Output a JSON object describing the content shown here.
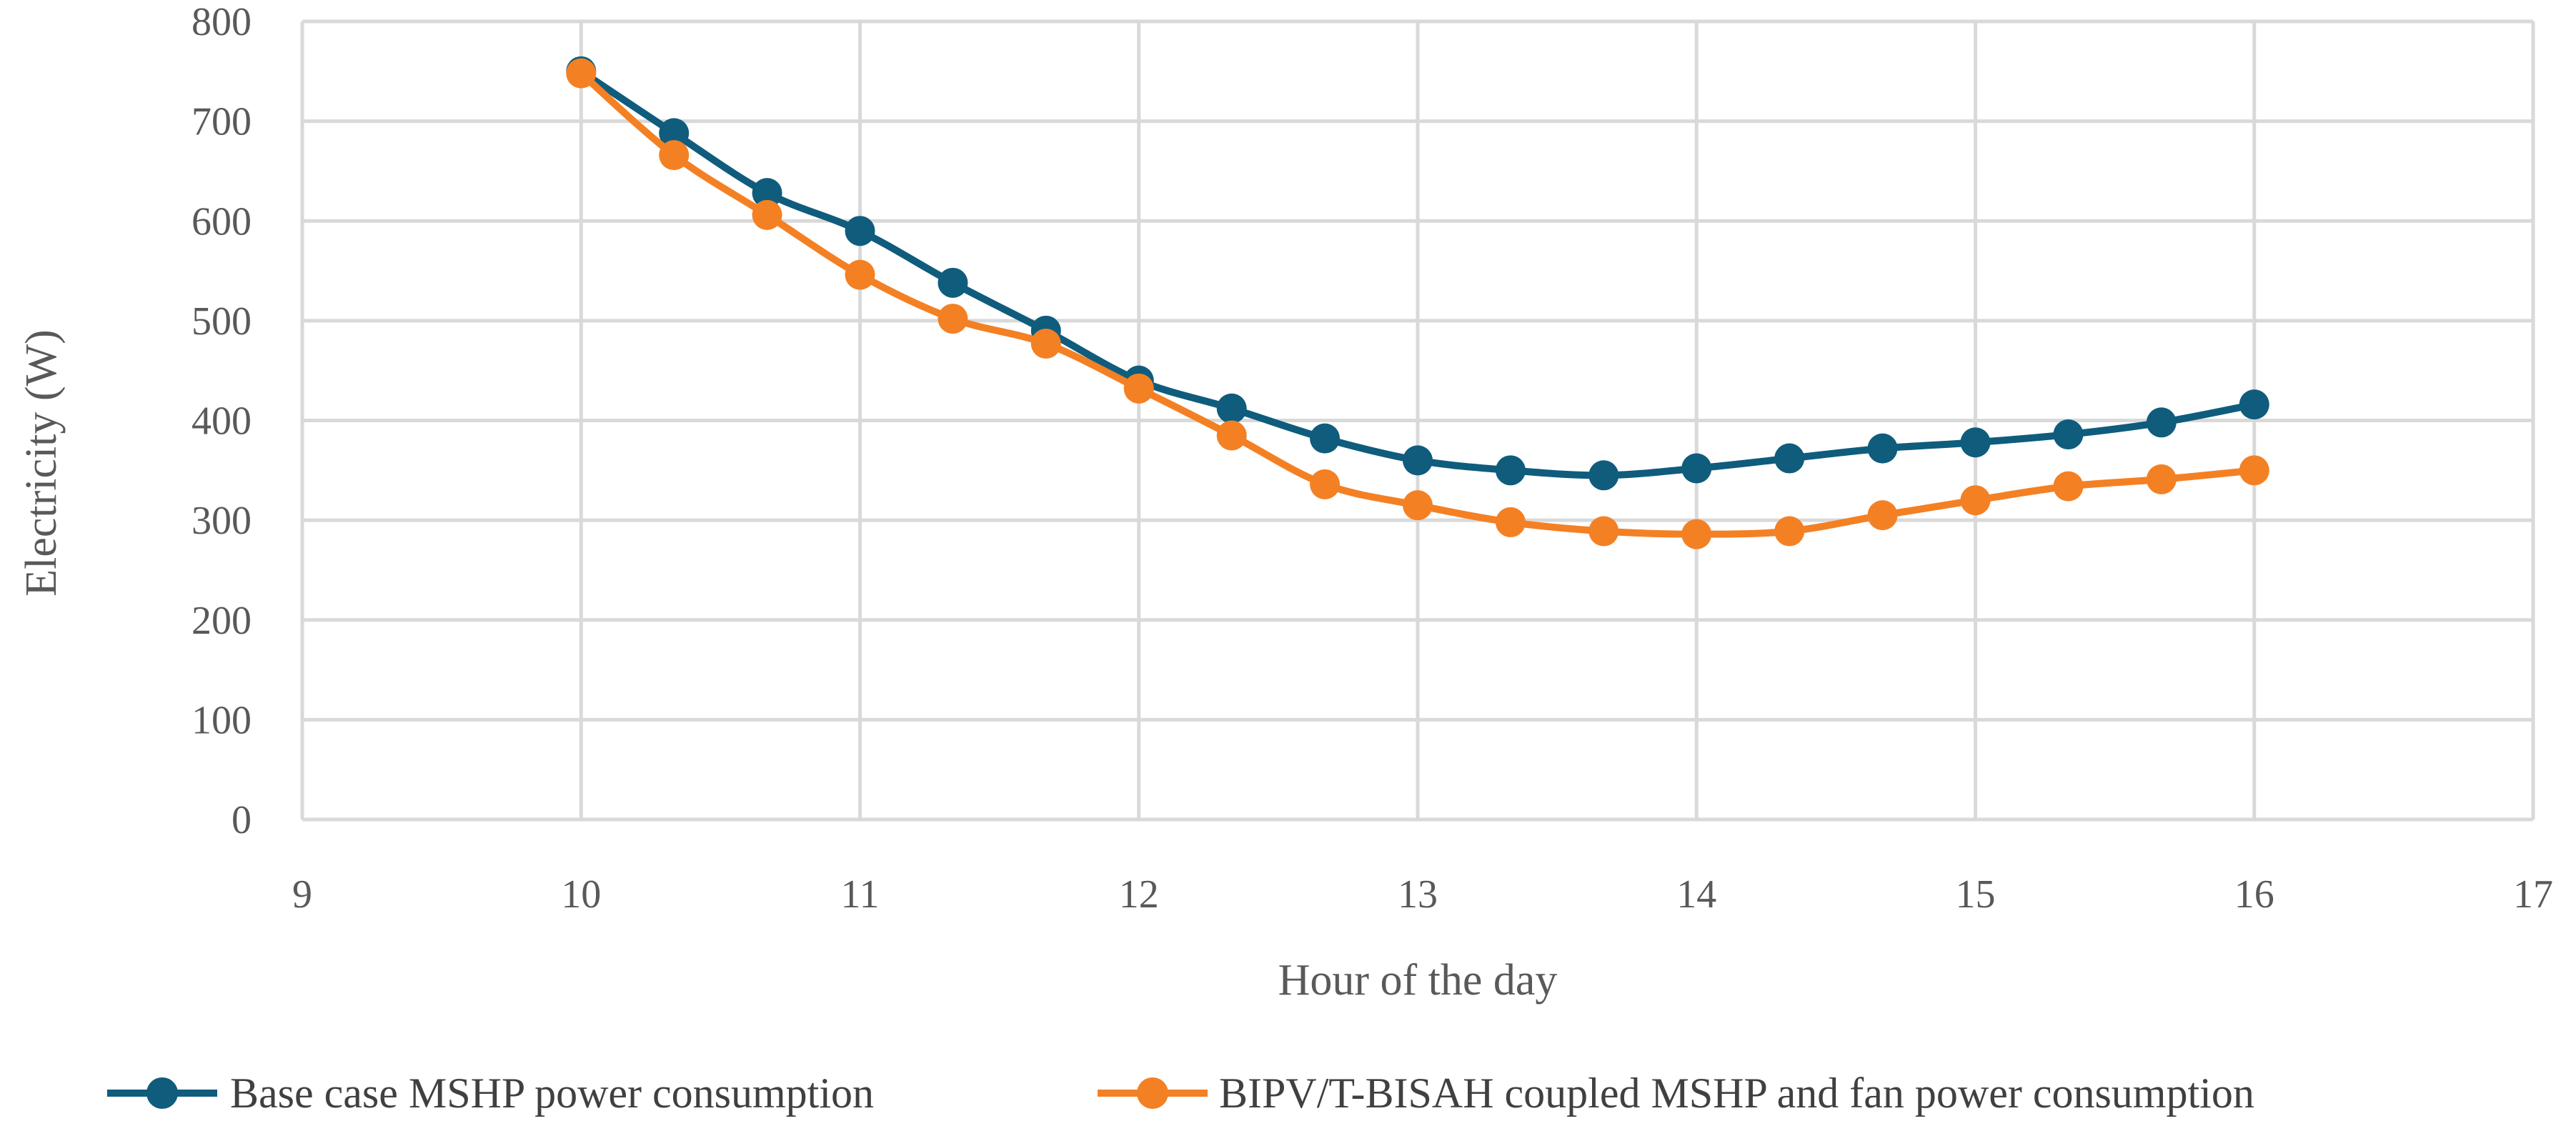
{
  "chart_data": {
    "type": "scatter",
    "xlabel": "Hour of the day",
    "ylabel": "Electricity (W)",
    "xlim": [
      9,
      17
    ],
    "ylim": [
      0,
      800
    ],
    "xticks": [
      9,
      10,
      11,
      12,
      13,
      14,
      15,
      16,
      17
    ],
    "yticks": [
      0,
      100,
      200,
      300,
      400,
      500,
      600,
      700,
      800
    ],
    "grid": true,
    "smooth_lines": true,
    "markers": true,
    "legend_position": "bottom",
    "series": [
      {
        "name": "Base case MSHP power consumption",
        "color": "#0f5c7d",
        "points": [
          [
            10.0,
            750
          ],
          [
            10.333,
            688
          ],
          [
            10.667,
            628
          ],
          [
            11.0,
            590
          ],
          [
            11.333,
            538
          ],
          [
            11.667,
            490
          ],
          [
            12.0,
            440
          ],
          [
            12.333,
            412
          ],
          [
            12.667,
            382
          ],
          [
            13.0,
            360
          ],
          [
            13.333,
            350
          ],
          [
            13.667,
            345
          ],
          [
            14.0,
            352
          ],
          [
            14.333,
            362
          ],
          [
            14.667,
            372
          ],
          [
            15.0,
            378
          ],
          [
            15.333,
            386
          ],
          [
            15.667,
            398
          ],
          [
            16.0,
            416
          ]
        ]
      },
      {
        "name": "BIPV/T-BISAH coupled MSHP and fan power consumption",
        "color": "#f48024",
        "points": [
          [
            10.0,
            748
          ],
          [
            10.333,
            666
          ],
          [
            10.667,
            606
          ],
          [
            11.0,
            546
          ],
          [
            11.333,
            502
          ],
          [
            11.667,
            477
          ],
          [
            12.0,
            432
          ],
          [
            12.333,
            385
          ],
          [
            12.667,
            336
          ],
          [
            13.0,
            315
          ],
          [
            13.333,
            298
          ],
          [
            13.667,
            289
          ],
          [
            14.0,
            286
          ],
          [
            14.333,
            289
          ],
          [
            14.667,
            305
          ],
          [
            15.0,
            320
          ],
          [
            15.333,
            334
          ],
          [
            15.667,
            341
          ],
          [
            16.0,
            350
          ]
        ]
      }
    ]
  }
}
